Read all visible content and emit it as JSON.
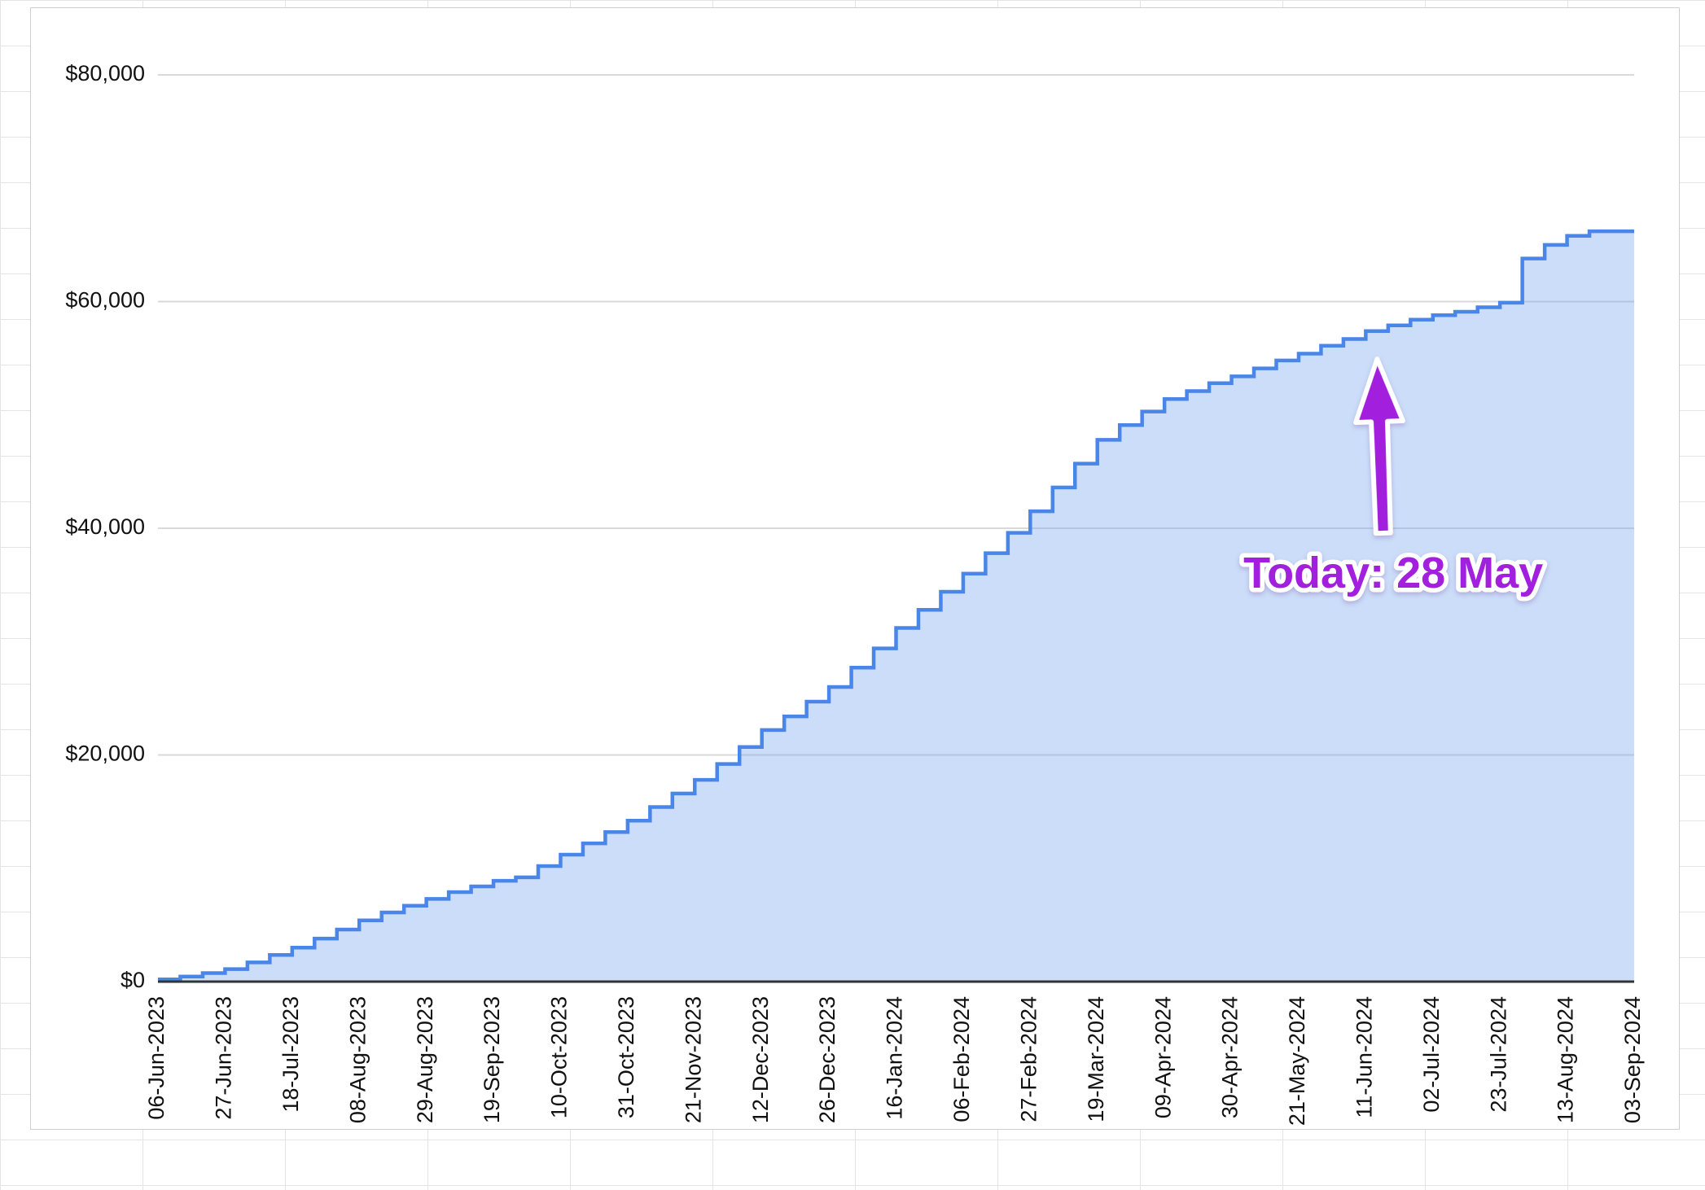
{
  "chart_data": {
    "type": "area",
    "subtype": "step",
    "title": "",
    "xlabel": "",
    "ylabel": "",
    "ylim": [
      0,
      80000
    ],
    "grid": true,
    "legend": "none",
    "y_tick_values": [
      0,
      20000,
      40000,
      60000,
      80000
    ],
    "y_tick_labels": [
      "$0",
      "$20,000",
      "$40,000",
      "$60,000",
      "$80,000"
    ],
    "x_label_every_n_points": 3,
    "x_tick_labels": [
      "06-Jun-2023",
      "27-Jun-2023",
      "18-Jul-2023",
      "08-Aug-2023",
      "29-Aug-2023",
      "19-Sep-2023",
      "10-Oct-2023",
      "31-Oct-2023",
      "21-Nov-2023",
      "12-Dec-2023",
      "26-Dec-2023",
      "16-Jan-2024",
      "06-Feb-2024",
      "27-Feb-2024",
      "19-Mar-2024",
      "09-Apr-2024",
      "30-Apr-2024",
      "21-May-2024",
      "11-Jun-2024",
      "02-Jul-2024",
      "23-Jul-2024",
      "13-Aug-2024",
      "03-Sep-2024"
    ],
    "values": [
      200,
      450,
      750,
      1100,
      1700,
      2350,
      3000,
      3800,
      4600,
      5400,
      6100,
      6700,
      7300,
      7900,
      8400,
      8900,
      9200,
      10200,
      11200,
      12200,
      13200,
      14200,
      15400,
      16600,
      17800,
      19200,
      20700,
      22200,
      23400,
      24700,
      26000,
      27700,
      29400,
      31200,
      32800,
      34400,
      36000,
      37800,
      39600,
      41500,
      43600,
      45700,
      47800,
      49100,
      50300,
      51400,
      52100,
      52800,
      53400,
      54100,
      54800,
      55400,
      56100,
      56700,
      57400,
      57900,
      58400,
      58800,
      59100,
      59500,
      59900,
      63800,
      65000,
      65800,
      66200,
      66200,
      66200
    ],
    "colors": {
      "line": "#4a86e8",
      "fill": "rgba(118,165,238,0.38)",
      "gridline": "#d9d9d9",
      "axis": "#333333",
      "label": "#111111"
    },
    "annotation": {
      "text": "Today: 28 May",
      "color": "#a21fde",
      "outline_color": "#ffffff",
      "arrow_direction": "up"
    }
  }
}
